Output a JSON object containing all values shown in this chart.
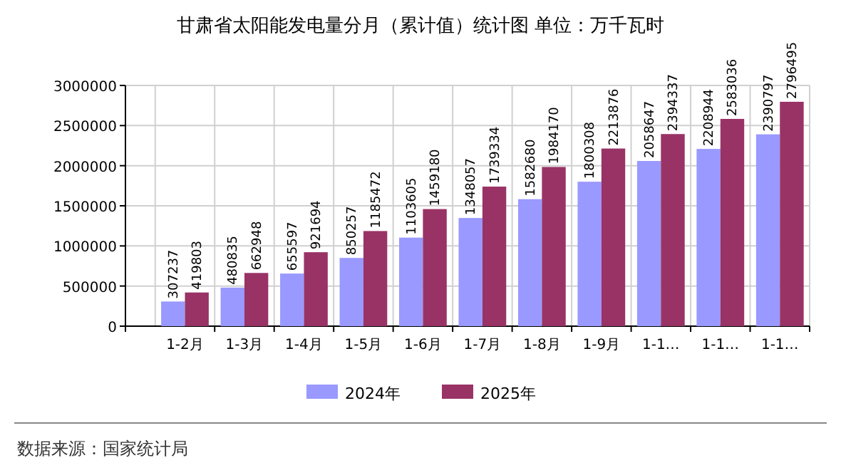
{
  "chart_data": {
    "type": "bar",
    "title": "甘肃省太阳能发电量分月（累计值）统计图 单位：万千瓦时",
    "categories": [
      "1-2月",
      "1-3月",
      "1-4月",
      "1-5月",
      "1-6月",
      "1-7月",
      "1-8月",
      "1-9月",
      "1-1…",
      "1-1…",
      "1-1…"
    ],
    "series": [
      {
        "name": "2024年",
        "color": "#9999ff",
        "values": [
          307237,
          480835,
          655597,
          850257,
          1103605,
          1348057,
          1582680,
          1800308,
          2058647,
          2208944,
          2390797
        ]
      },
      {
        "name": "2025年",
        "color": "#993366",
        "values": [
          419803,
          662948,
          921694,
          1185472,
          1459180,
          1739334,
          1984170,
          2213876,
          2394337,
          2583036,
          2796495
        ]
      }
    ],
    "ylim": [
      0,
      3000000
    ],
    "yticks": [
      0,
      500000,
      1000000,
      1500000,
      2000000,
      2500000,
      3000000
    ],
    "grid": true,
    "legend": "bottom",
    "data_labels": true,
    "annotations": [
      "数据来源：国家统计局"
    ]
  }
}
